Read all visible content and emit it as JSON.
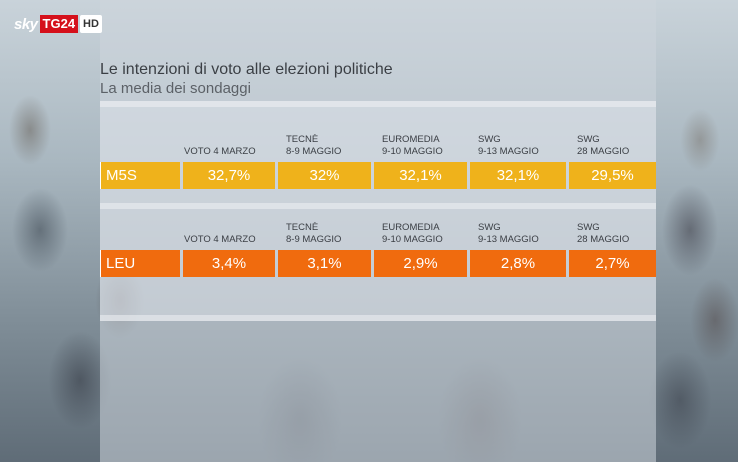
{
  "brand": {
    "sky": "sky",
    "tg24": "TG24",
    "hd": "HD",
    "accent": "#d5101b"
  },
  "header": {
    "title": "Le intenzioni di voto alle elezioni politiche",
    "subtitle": "La media dei sondaggi"
  },
  "columns": [
    {
      "line1": "",
      "line2": "VOTO 4 MARZO"
    },
    {
      "line1": "TECNÈ",
      "line2": "8-9 MAGGIO"
    },
    {
      "line1": "EUROMEDIA",
      "line2": "9-10 MAGGIO"
    },
    {
      "line1": "SWG",
      "line2": "9-13 MAGGIO"
    },
    {
      "line1": "SWG",
      "line2": "28 MAGGIO"
    }
  ],
  "chart_data": {
    "type": "table",
    "title": "Le intenzioni di voto alle elezioni politiche",
    "subtitle": "La media dei sondaggi",
    "categories": [
      "VOTO 4 MARZO",
      "TECNÈ 8-9 MAGGIO",
      "EUROMEDIA 9-10 MAGGIO",
      "SWG 9-13 MAGGIO",
      "SWG 28 MAGGIO"
    ],
    "series": [
      {
        "name": "M5S",
        "color": "#efb21b",
        "values": [
          32.7,
          32,
          32.1,
          32.1,
          29.5
        ],
        "labels": [
          "32,7%",
          "32%",
          "32,1%",
          "32,1%",
          "29,5%"
        ]
      },
      {
        "name": "LEU",
        "color": "#f06b0e",
        "values": [
          3.4,
          3.1,
          2.9,
          2.8,
          2.7
        ],
        "labels": [
          "3,4%",
          "3,1%",
          "2,9%",
          "2,8%",
          "2,7%"
        ]
      }
    ]
  }
}
